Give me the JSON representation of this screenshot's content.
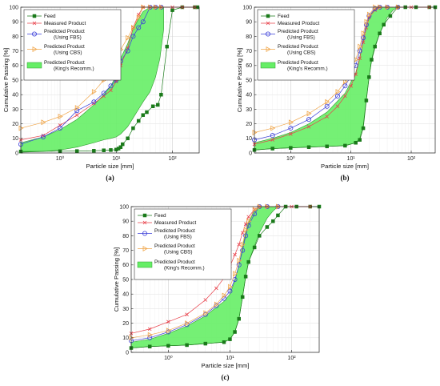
{
  "figure": {
    "colors": {
      "feed": "#1a7a1a",
      "measured": "#e8404a",
      "fbs": "#3b3fd9",
      "cbs": "#f0a64a",
      "band_fill": "#66ee66",
      "band_edge": "#2f9a2f",
      "grid": "#dddddd",
      "axis": "#222222"
    }
  },
  "chart_data": [
    {
      "type": "line",
      "panel_label": "(a)",
      "xlabel": "Particle size [mm]",
      "ylabel": "Cumulative Passing [%]",
      "xscale": "log",
      "xlim": [
        0.2,
        300
      ],
      "ylim": [
        0,
        100
      ],
      "grid": true,
      "legend_position": "top-left",
      "x_tick_labels": [
        "10⁰",
        "10¹",
        "10²"
      ],
      "y_tick_labels": [
        "0",
        "10",
        "20",
        "30",
        "40",
        "50",
        "60",
        "70",
        "80",
        "90",
        "100"
      ],
      "legend": [
        "Feed",
        "Measured Product",
        "Predicted Product (Using FBS)",
        "Predicted Product (Using CBS)",
        "Predicted Product (King's Recomm.)"
      ],
      "series": [
        {
          "name": "Feed",
          "x": [
            0.2,
            1.0,
            2.0,
            4.0,
            6.0,
            8.0,
            10.0,
            11.0,
            12.0,
            13.0,
            16.0,
            20.0,
            25.0,
            30.0,
            35.0,
            45.0,
            55.0,
            63.0,
            80.0,
            100.0,
            150.0,
            250.0,
            280.0
          ],
          "y": [
            1,
            1.2,
            1.3,
            1.5,
            1.8,
            2,
            2.3,
            3,
            4,
            6,
            10,
            17,
            22,
            26,
            28,
            32,
            33,
            40,
            73,
            98,
            100,
            100,
            100
          ]
        },
        {
          "name": "Measured Product",
          "x": [
            0.2,
            0.5,
            1.0,
            2.0,
            4.0,
            6.0,
            8.0,
            10.0,
            12.0,
            16.0,
            20.0,
            25.0,
            30.0,
            40.0,
            50.0,
            63.0,
            100.0,
            150.0,
            250.0
          ],
          "y": [
            9,
            12,
            19,
            26,
            34,
            39,
            43,
            49,
            60,
            72,
            86,
            95,
            100,
            100,
            100,
            100,
            100,
            100,
            100
          ]
        },
        {
          "name": "Predicted Product (Using FBS)",
          "x": [
            0.2,
            0.5,
            1.0,
            2.0,
            4.0,
            6.0,
            8.0,
            10.0,
            12.0,
            16.0,
            20.0,
            25.0,
            30.0,
            40.0,
            50.0,
            63.0
          ],
          "y": [
            6,
            11,
            17,
            29,
            35,
            41,
            46,
            50,
            63,
            70,
            80,
            86,
            90,
            100,
            100,
            100
          ]
        },
        {
          "name": "Predicted Product (Using CBS)",
          "x": [
            0.2,
            0.5,
            1.0,
            2.0,
            4.0,
            6.0,
            8.0,
            10.0,
            12.0,
            16.0,
            20.0,
            25.0,
            30.0,
            40.0,
            50.0,
            63.0
          ],
          "y": [
            17,
            21,
            25,
            31,
            42,
            50,
            58,
            65,
            71,
            79,
            86,
            93,
            100,
            100,
            100,
            100
          ]
        }
      ],
      "band": {
        "name": "Predicted Product (King's Recomm.)",
        "x": [
          0.2,
          0.5,
          1.0,
          2.0,
          4.0,
          6.0,
          8.0,
          10.0,
          12.0,
          16.0,
          20.0,
          25.0,
          30.0,
          40.0,
          50.0,
          60.0,
          70.0
        ],
        "upper": [
          7,
          11,
          16,
          23,
          33,
          40,
          46,
          53,
          65,
          75,
          85,
          92,
          97,
          100,
          100,
          100,
          100
        ],
        "lower": [
          0.5,
          1,
          2,
          4,
          7,
          9,
          10,
          11,
          13,
          18,
          24,
          30,
          35,
          42,
          52,
          65,
          85
        ]
      }
    },
    {
      "type": "line",
      "panel_label": "(b)",
      "xlabel": "Particle size [mm]",
      "ylabel": "Cumulative Passing [%]",
      "xscale": "log",
      "xlim": [
        0.25,
        250
      ],
      "ylim": [
        0,
        100
      ],
      "grid": true,
      "legend_position": "top-left",
      "x_tick_labels": [
        "10⁰",
        "10¹",
        "10²"
      ],
      "y_tick_labels": [
        "0",
        "10",
        "20",
        "30",
        "40",
        "50",
        "60",
        "70",
        "80",
        "90",
        "100"
      ],
      "legend": [
        "Feed",
        "Measured Product",
        "Predicted Product (Using FBS)",
        "Predicted Product (Using CBS)",
        "Predicted Product (King's Recomm.)"
      ],
      "series": [
        {
          "name": "Feed",
          "x": [
            0.25,
            0.5,
            1.0,
            2.0,
            4.0,
            8.0,
            12.0,
            14.0,
            16.0,
            18.0,
            20.0,
            22.0,
            25.0,
            30.0,
            35.0,
            45.0,
            60.0,
            80.0,
            120.0,
            200.0,
            250.0
          ],
          "y": [
            2,
            3,
            3.5,
            4,
            4.5,
            5,
            7,
            9,
            17,
            36,
            52,
            64,
            73,
            82,
            88,
            94,
            100,
            100,
            100,
            100,
            100
          ]
        },
        {
          "name": "Measured Product",
          "x": [
            0.25,
            0.5,
            1.0,
            2.0,
            4.0,
            6.0,
            8.0,
            10.0,
            12.0,
            14.0,
            16.0,
            18.0,
            20.0,
            25.0,
            30.0,
            40.0,
            60.0,
            100.0,
            200.0
          ],
          "y": [
            6,
            9,
            13,
            18,
            25,
            32,
            39,
            46,
            54,
            65,
            76,
            86,
            93,
            98,
            100,
            100,
            100,
            100,
            100
          ]
        },
        {
          "name": "Predicted Product (Using FBS)",
          "x": [
            0.25,
            0.5,
            1.0,
            2.0,
            4.0,
            6.0,
            8.0,
            10.0,
            12.0,
            14.0,
            16.0,
            18.0,
            20.0,
            25.0,
            30.0,
            40.0,
            60.0
          ],
          "y": [
            9,
            12,
            17,
            23,
            32,
            39,
            46,
            53,
            60,
            70,
            79,
            88,
            94,
            99,
            100,
            100,
            100
          ]
        },
        {
          "name": "Predicted Product (Using CBS)",
          "x": [
            0.25,
            0.5,
            1.0,
            2.0,
            4.0,
            6.0,
            8.0,
            10.0,
            12.0,
            14.0,
            16.0,
            18.0,
            20.0,
            25.0,
            30.0,
            40.0,
            60.0
          ],
          "y": [
            14,
            17,
            21,
            27,
            35,
            42,
            49,
            57,
            64,
            73,
            82,
            90,
            95,
            100,
            100,
            100,
            100
          ]
        }
      ],
      "band": {
        "name": "Predicted Product (King's Recomm.)",
        "x": [
          0.25,
          0.5,
          1.0,
          2.0,
          4.0,
          8.0,
          12.0,
          14.0,
          16.0,
          18.0,
          20.0,
          22.0,
          25.0,
          30.0,
          40.0,
          50.0,
          60.0
        ],
        "upper": [
          7,
          10,
          14,
          20,
          28,
          41,
          55,
          66,
          77,
          86,
          92,
          96,
          99,
          100,
          100,
          100,
          100
        ],
        "lower": [
          2,
          3,
          3.5,
          4,
          4.5,
          5,
          7,
          10,
          19,
          37,
          52,
          63,
          72,
          82,
          93,
          98,
          100
        ]
      }
    },
    {
      "type": "line",
      "panel_label": "(c)",
      "xlabel": "Particle size [mm]",
      "ylabel": "Cumulative Passing [%]",
      "xscale": "log",
      "xlim": [
        0.25,
        280
      ],
      "ylim": [
        0,
        100
      ],
      "grid": true,
      "legend_position": "top-left",
      "x_tick_labels": [
        "10⁰",
        "10¹",
        "10²"
      ],
      "y_tick_labels": [
        "0",
        "10",
        "20",
        "30",
        "40",
        "50",
        "60",
        "70",
        "80",
        "90",
        "100"
      ],
      "legend": [
        "Feed",
        "Measured Product",
        "Predicted Product (Using FBS)",
        "Predicted Product (Using CBS)",
        "Predicted Product (King's Recomm.)"
      ],
      "series": [
        {
          "name": "Feed",
          "x": [
            0.25,
            0.5,
            1.0,
            2.0,
            4.0,
            8.0,
            10.0,
            12.0,
            14.0,
            16.0,
            18.0,
            20.0,
            25.0,
            30.0,
            40.0,
            50.0,
            60.0,
            80.0,
            120.0,
            200.0,
            280.0
          ],
          "y": [
            3,
            4,
            4.5,
            5,
            6,
            7,
            9,
            14,
            23,
            38,
            52,
            62,
            72,
            80,
            86,
            90,
            94,
            100,
            100,
            100,
            100
          ]
        },
        {
          "name": "Measured Product",
          "x": [
            0.25,
            0.5,
            1.0,
            2.0,
            4.0,
            6.0,
            8.0,
            10.0,
            12.0,
            14.0,
            16.0,
            18.0,
            20.0,
            25.0,
            30.0,
            40.0,
            60.0,
            100.0,
            200.0
          ],
          "y": [
            13,
            16,
            21,
            26,
            36,
            44,
            51,
            59,
            67,
            74,
            82,
            88,
            93,
            98,
            100,
            100,
            100,
            100,
            100
          ]
        },
        {
          "name": "Predicted Product (Using FBS)",
          "x": [
            0.25,
            0.5,
            1.0,
            2.0,
            4.0,
            6.0,
            8.0,
            10.0,
            12.0,
            14.0,
            16.0,
            18.0,
            20.0,
            25.0,
            30.0,
            40.0,
            60.0
          ],
          "y": [
            8,
            10,
            14,
            19,
            26,
            32,
            37,
            42,
            50,
            60,
            70,
            80,
            87,
            95,
            100,
            100,
            100
          ]
        },
        {
          "name": "Predicted Product (Using CBS)",
          "x": [
            0.25,
            0.5,
            1.0,
            2.0,
            4.0,
            6.0,
            8.0,
            10.0,
            12.0,
            14.0,
            16.0,
            18.0,
            20.0,
            25.0,
            30.0,
            40.0,
            60.0
          ],
          "y": [
            10,
            12,
            15,
            20,
            27,
            33,
            39,
            45,
            54,
            63,
            74,
            84,
            90,
            98,
            100,
            100,
            100
          ]
        }
      ],
      "band": {
        "name": "Predicted Product (King's Recomm.)",
        "x": [
          0.25,
          0.5,
          1.0,
          2.0,
          4.0,
          8.0,
          10.0,
          12.0,
          14.0,
          16.0,
          18.0,
          20.0,
          25.0,
          30.0,
          40.0,
          50.0,
          60.0
        ],
        "upper": [
          7,
          9,
          13,
          18,
          25,
          35,
          40,
          49,
          60,
          72,
          82,
          89,
          97,
          100,
          100,
          100,
          100
        ],
        "lower": [
          3,
          4,
          4.5,
          5,
          6,
          7,
          9,
          14,
          23,
          38,
          52,
          62,
          73,
          82,
          92,
          97,
          100
        ]
      }
    }
  ]
}
